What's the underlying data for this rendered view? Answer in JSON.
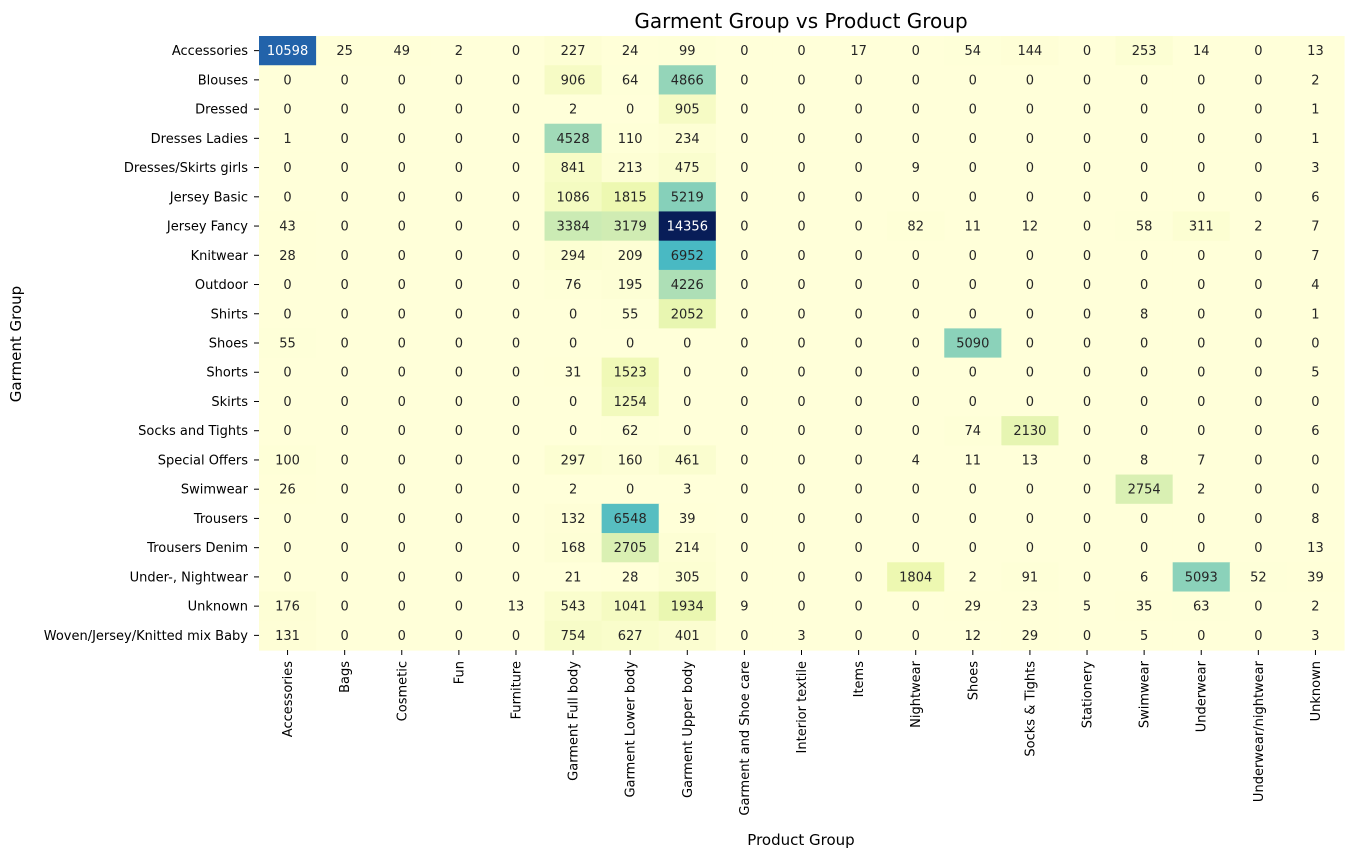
{
  "chart_data": {
    "type": "heatmap",
    "title": "Garment Group vs Product Group",
    "xlabel": "Product Group",
    "ylabel": "Garment Group",
    "colormap": [
      "#ffffd9",
      "#edf8b1",
      "#c7e9b4",
      "#7fcdbb",
      "#41b6c4",
      "#1d91c0",
      "#225ea8",
      "#253494",
      "#081d58"
    ],
    "value_range": [
      0,
      14356
    ],
    "grid": false,
    "legend": "none",
    "x_categories": [
      "Accessories",
      "Bags",
      "Cosmetic",
      "Fun",
      "Furniture",
      "Garment Full body",
      "Garment Lower body",
      "Garment Upper body",
      "Garment and Shoe care",
      "Interior textile",
      "Items",
      "Nightwear",
      "Shoes",
      "Socks & Tights",
      "Stationery",
      "Swimwear",
      "Underwear",
      "Underwear/nightwear",
      "Unknown"
    ],
    "y_categories": [
      "Accessories",
      "Blouses",
      "Dressed",
      "Dresses Ladies",
      "Dresses/Skirts girls",
      "Jersey Basic",
      "Jersey Fancy",
      "Knitwear",
      "Outdoor",
      "Shirts",
      "Shoes",
      "Shorts",
      "Skirts",
      "Socks and Tights",
      "Special Offers",
      "Swimwear",
      "Trousers",
      "Trousers Denim",
      "Under-, Nightwear",
      "Unknown",
      "Woven/Jersey/Knitted mix Baby"
    ],
    "values": [
      [
        10598,
        25,
        49,
        2,
        0,
        227,
        24,
        99,
        0,
        0,
        17,
        0,
        54,
        144,
        0,
        253,
        14,
        0,
        13
      ],
      [
        0,
        0,
        0,
        0,
        0,
        906,
        64,
        4866,
        0,
        0,
        0,
        0,
        0,
        0,
        0,
        0,
        0,
        0,
        2
      ],
      [
        0,
        0,
        0,
        0,
        0,
        2,
        0,
        905,
        0,
        0,
        0,
        0,
        0,
        0,
        0,
        0,
        0,
        0,
        1
      ],
      [
        1,
        0,
        0,
        0,
        0,
        4528,
        110,
        234,
        0,
        0,
        0,
        0,
        0,
        0,
        0,
        0,
        0,
        0,
        1
      ],
      [
        0,
        0,
        0,
        0,
        0,
        841,
        213,
        475,
        0,
        0,
        0,
        9,
        0,
        0,
        0,
        0,
        0,
        0,
        3
      ],
      [
        0,
        0,
        0,
        0,
        0,
        1086,
        1815,
        5219,
        0,
        0,
        0,
        0,
        0,
        0,
        0,
        0,
        0,
        0,
        6
      ],
      [
        43,
        0,
        0,
        0,
        0,
        3384,
        3179,
        14356,
        0,
        0,
        0,
        82,
        11,
        12,
        0,
        58,
        311,
        2,
        7
      ],
      [
        28,
        0,
        0,
        0,
        0,
        294,
        209,
        6952,
        0,
        0,
        0,
        0,
        0,
        0,
        0,
        0,
        0,
        0,
        7
      ],
      [
        0,
        0,
        0,
        0,
        0,
        76,
        195,
        4226,
        0,
        0,
        0,
        0,
        0,
        0,
        0,
        0,
        0,
        0,
        4
      ],
      [
        0,
        0,
        0,
        0,
        0,
        0,
        55,
        2052,
        0,
        0,
        0,
        0,
        0,
        0,
        0,
        8,
        0,
        0,
        1
      ],
      [
        55,
        0,
        0,
        0,
        0,
        0,
        0,
        0,
        0,
        0,
        0,
        0,
        5090,
        0,
        0,
        0,
        0,
        0,
        0
      ],
      [
        0,
        0,
        0,
        0,
        0,
        31,
        1523,
        0,
        0,
        0,
        0,
        0,
        0,
        0,
        0,
        0,
        0,
        0,
        5
      ],
      [
        0,
        0,
        0,
        0,
        0,
        0,
        1254,
        0,
        0,
        0,
        0,
        0,
        0,
        0,
        0,
        0,
        0,
        0,
        0
      ],
      [
        0,
        0,
        0,
        0,
        0,
        0,
        62,
        0,
        0,
        0,
        0,
        0,
        74,
        2130,
        0,
        0,
        0,
        0,
        6
      ],
      [
        100,
        0,
        0,
        0,
        0,
        297,
        160,
        461,
        0,
        0,
        0,
        4,
        11,
        13,
        0,
        8,
        7,
        0,
        0
      ],
      [
        26,
        0,
        0,
        0,
        0,
        2,
        0,
        3,
        0,
        0,
        0,
        0,
        0,
        0,
        0,
        2754,
        2,
        0,
        0
      ],
      [
        0,
        0,
        0,
        0,
        0,
        132,
        6548,
        39,
        0,
        0,
        0,
        0,
        0,
        0,
        0,
        0,
        0,
        0,
        8
      ],
      [
        0,
        0,
        0,
        0,
        0,
        168,
        2705,
        214,
        0,
        0,
        0,
        0,
        0,
        0,
        0,
        0,
        0,
        0,
        13
      ],
      [
        0,
        0,
        0,
        0,
        0,
        21,
        28,
        305,
        0,
        0,
        0,
        1804,
        2,
        91,
        0,
        6,
        5093,
        52,
        39
      ],
      [
        176,
        0,
        0,
        0,
        13,
        543,
        1041,
        1934,
        9,
        0,
        0,
        0,
        29,
        23,
        5,
        35,
        63,
        0,
        2
      ],
      [
        131,
        0,
        0,
        0,
        0,
        754,
        627,
        401,
        0,
        3,
        0,
        0,
        12,
        29,
        0,
        5,
        0,
        0,
        3
      ]
    ]
  }
}
